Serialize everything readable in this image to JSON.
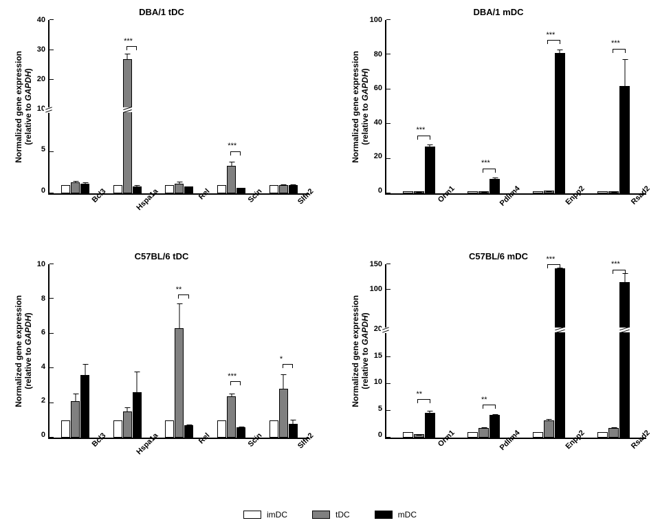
{
  "legend": {
    "items": [
      {
        "label": "imDC",
        "color": "#ffffff"
      },
      {
        "label": "tDC",
        "color": "#808080"
      },
      {
        "label": "mDC",
        "color": "#000000"
      }
    ]
  },
  "ylabel_line1": "Normalized gene expression",
  "ylabel_line2_prefix": "(relative to ",
  "ylabel_line2_gene": "GAPDH",
  "ylabel_line2_suffix": ")",
  "colors": {
    "imDC": "#ffffff",
    "tDC": "#808080",
    "mDC": "#000000",
    "axis": "#000000",
    "background": "#ffffff"
  },
  "font": {
    "title_pt": 13,
    "label_pt": 12,
    "tick_pt": 11,
    "family": "Arial"
  },
  "panels": [
    {
      "id": "p1",
      "title": "DBA/1 tDC",
      "type": "grouped-bar",
      "categories": [
        "Bcl3",
        "Hspa1a",
        "Rel",
        "Scin",
        "Slfn2"
      ],
      "break": {
        "at_logical": 10,
        "below_max": 10,
        "above_max": 40,
        "pos_pct": 48
      },
      "yticks_below": [
        0,
        5,
        10
      ],
      "yticks_above": [
        20,
        30,
        40
      ],
      "series": [
        {
          "name": "imDC",
          "values": [
            1.0,
            1.0,
            1.0,
            1.0,
            1.0
          ],
          "err": [
            0,
            0,
            0,
            0,
            0
          ]
        },
        {
          "name": "tDC",
          "values": [
            1.3,
            27.0,
            1.2,
            3.3,
            1.0
          ],
          "err": [
            0.3,
            2.0,
            0.3,
            0.6,
            0.2
          ]
        },
        {
          "name": "mDC",
          "values": [
            1.2,
            0.8,
            0.8,
            0.7,
            1.0
          ],
          "err": [
            0.2,
            0.4,
            0.1,
            0.1,
            0.2
          ]
        }
      ],
      "sig": [
        {
          "group": 1,
          "from": "tDC",
          "to": "mDC",
          "label": "***",
          "y_logical": 31
        },
        {
          "group": 3,
          "from": "tDC",
          "to": "mDC",
          "label": "***",
          "y_logical": 5
        }
      ]
    },
    {
      "id": "p2",
      "title": "DBA/1 mDC",
      "type": "grouped-bar",
      "categories": [
        "Orm1",
        "Pdlim4",
        "Enpp2",
        "Rsad2"
      ],
      "yticks": [
        0,
        20,
        40,
        60,
        80,
        100
      ],
      "ymax": 100,
      "series": [
        {
          "name": "imDC",
          "values": [
            1.0,
            1.0,
            1.0,
            1.0
          ],
          "err": [
            0,
            0,
            0,
            0
          ]
        },
        {
          "name": "tDC",
          "values": [
            1.2,
            1.0,
            1.5,
            1.0
          ],
          "err": [
            0.2,
            0.2,
            0.4,
            0.2
          ]
        },
        {
          "name": "mDC",
          "values": [
            27.0,
            8.5,
            81.0,
            62.0
          ],
          "err": [
            1.5,
            1.2,
            2.5,
            16.0
          ]
        }
      ],
      "sig": [
        {
          "group": 0,
          "from": "tDC",
          "to": "mDC",
          "label": "***",
          "y_logical": 33
        },
        {
          "group": 1,
          "from": "tDC",
          "to": "mDC",
          "label": "***",
          "y_logical": 14
        },
        {
          "group": 2,
          "from": "tDC",
          "to": "mDC",
          "label": "***",
          "y_logical": 88
        },
        {
          "group": 3,
          "from": "tDC",
          "to": "mDC",
          "label": "***",
          "y_logical": 83
        }
      ]
    },
    {
      "id": "p3",
      "title": "C57BL/6 tDC",
      "type": "grouped-bar",
      "categories": [
        "Bcl3",
        "Hspa1a",
        "Rel",
        "Scin",
        "Slfn2"
      ],
      "yticks": [
        0,
        2,
        4,
        6,
        8,
        10
      ],
      "ymax": 10,
      "series": [
        {
          "name": "imDC",
          "values": [
            1.0,
            1.0,
            1.0,
            1.0,
            1.0
          ],
          "err": [
            0,
            0,
            0,
            0,
            0
          ]
        },
        {
          "name": "tDC",
          "values": [
            2.1,
            1.5,
            6.3,
            2.4,
            2.8
          ],
          "err": [
            0.5,
            0.3,
            1.5,
            0.2,
            0.9
          ]
        },
        {
          "name": "mDC",
          "values": [
            3.6,
            2.6,
            0.7,
            0.6,
            0.8
          ],
          "err": [
            0.7,
            1.3,
            0.1,
            0.1,
            0.3
          ]
        }
      ],
      "sig": [
        {
          "group": 2,
          "from": "tDC",
          "to": "mDC",
          "label": "**",
          "y_logical": 8.2
        },
        {
          "group": 3,
          "from": "tDC",
          "to": "mDC",
          "label": "***",
          "y_logical": 3.2
        },
        {
          "group": 4,
          "from": "tDC",
          "to": "mDC",
          "label": "*",
          "y_logical": 4.2
        }
      ]
    },
    {
      "id": "p4",
      "title": "C57BL/6 mDC",
      "type": "grouped-bar",
      "categories": [
        "Orm1",
        "Pdlim4",
        "Enpp2",
        "Rsad2"
      ],
      "break": {
        "at_logical": 20,
        "below_max": 20,
        "above_max": 150,
        "pos_pct": 62
      },
      "yticks_below": [
        0,
        5,
        10,
        15,
        20
      ],
      "yticks_above": [
        100,
        150
      ],
      "series": [
        {
          "name": "imDC",
          "values": [
            1.0,
            1.0,
            1.0,
            1.0
          ],
          "err": [
            0,
            0,
            0,
            0
          ]
        },
        {
          "name": "tDC",
          "values": [
            0.6,
            1.8,
            3.2,
            1.8
          ],
          "err": [
            0.1,
            0.3,
            0.4,
            0.3
          ]
        },
        {
          "name": "mDC",
          "values": [
            4.6,
            4.2,
            142.0,
            115.0
          ],
          "err": [
            0.6,
            0.3,
            3.0,
            19.0
          ]
        }
      ],
      "sig": [
        {
          "group": 0,
          "from": "tDC",
          "to": "mDC",
          "label": "**",
          "y_logical": 7
        },
        {
          "group": 1,
          "from": "tDC",
          "to": "mDC",
          "label": "**",
          "y_logical": 6
        },
        {
          "group": 2,
          "from": "tDC",
          "to": "mDC",
          "label": "***",
          "y_logical": 148
        },
        {
          "group": 3,
          "from": "tDC",
          "to": "mDC",
          "label": "***",
          "y_logical": 138
        }
      ]
    }
  ]
}
